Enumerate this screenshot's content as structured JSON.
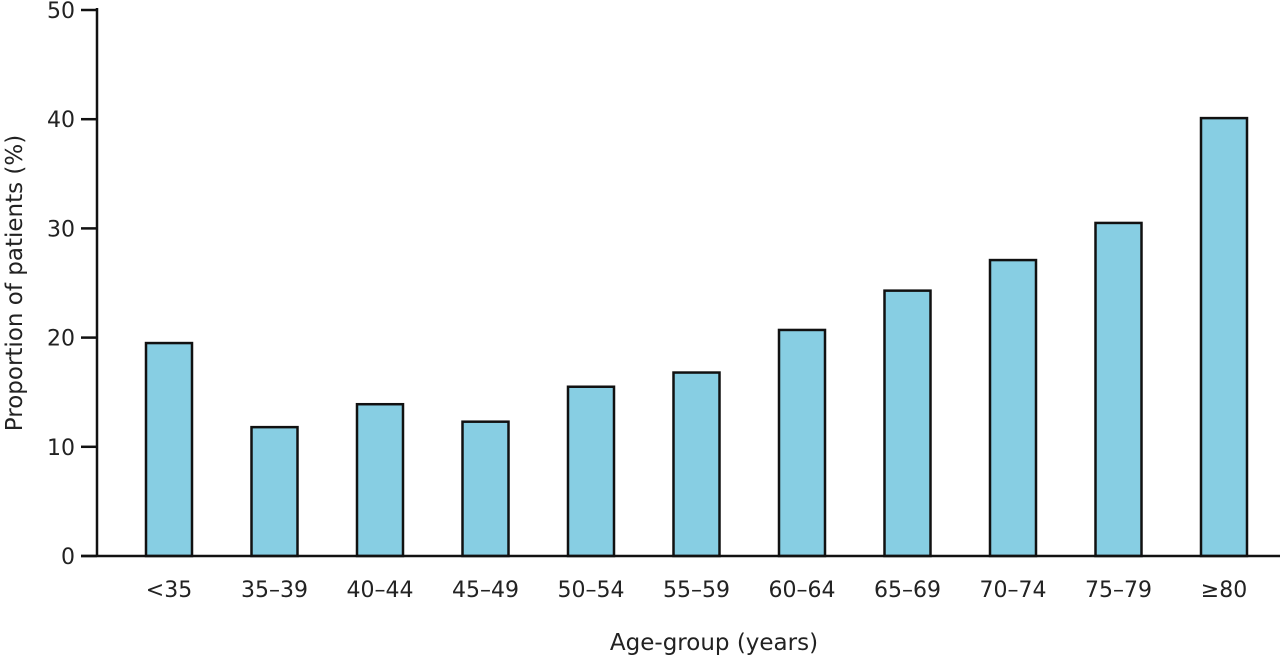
{
  "chart_data": {
    "type": "bar",
    "title": "",
    "xlabel": "Age-group (years)",
    "ylabel": "Proportion of patients (%)",
    "categories": [
      "<35",
      "35–39",
      "40–44",
      "45–49",
      "50–54",
      "55–59",
      "60–64",
      "65–69",
      "70–74",
      "75–79",
      "≥80"
    ],
    "values": [
      19.5,
      11.8,
      13.9,
      12.3,
      15.5,
      16.8,
      20.7,
      24.3,
      27.1,
      30.5,
      40.1
    ],
    "ylim": [
      0,
      50
    ],
    "yticks": [
      0,
      10,
      20,
      30,
      40,
      50
    ],
    "ytick_labels": [
      "0",
      "10",
      "20",
      "30",
      "40",
      "50"
    ],
    "grid": false,
    "legend": "none",
    "bar_color": "#87CEE3",
    "bar_edge_color": "#111111"
  }
}
